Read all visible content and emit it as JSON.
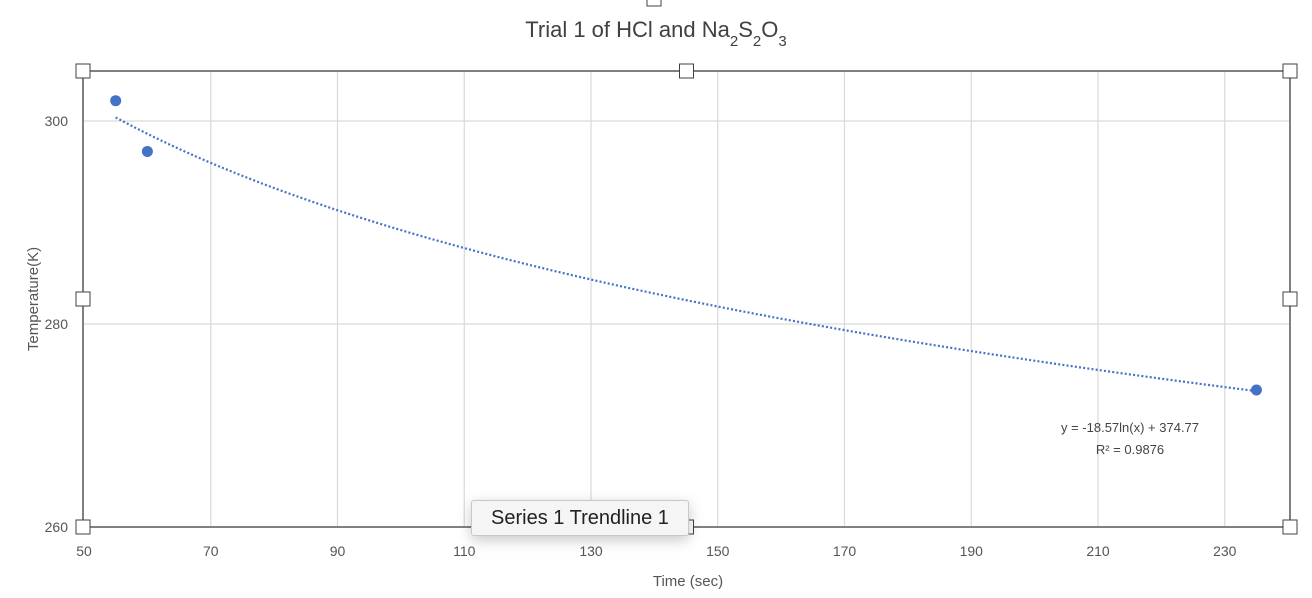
{
  "chart_data": {
    "type": "scatter",
    "title": {
      "prefix": "Trial 1  of HCl and Na",
      "sub1": "2",
      "mid": "S",
      "sub2": "2",
      "mid2": "O",
      "sub3": "3"
    },
    "xlabel": "Time (sec)",
    "ylabel": "Temperature(K)",
    "xlim": [
      50,
      240
    ],
    "ylim": [
      260,
      305
    ],
    "x_ticks": [
      50,
      70,
      90,
      110,
      130,
      150,
      170,
      190,
      210,
      230
    ],
    "y_ticks": [
      260,
      280,
      300
    ],
    "grid": true,
    "series": [
      {
        "points": [
          {
            "x": 55,
            "y": 302
          },
          {
            "x": 60,
            "y": 297
          },
          {
            "x": 235,
            "y": 273.5
          }
        ],
        "color": "#4472C4",
        "trendline": {
          "type": "logarithmic",
          "a": -18.57,
          "b": 374.77,
          "x_start": 55,
          "x_end": 235,
          "equation_label": "y = -18.57ln(x) + 374.77",
          "r2_label": "R² = 0.9876"
        }
      }
    ]
  },
  "tooltip": {
    "text": "Series 1 Trendline 1"
  },
  "colors": {
    "axis": "#808080",
    "grid": "#d9d9d9",
    "handle_border": "#404040"
  }
}
